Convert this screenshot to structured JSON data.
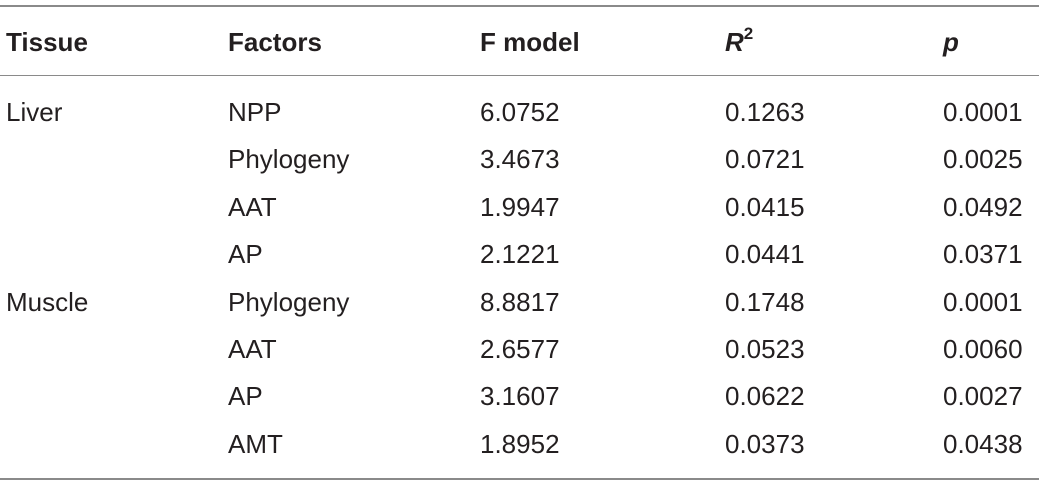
{
  "table": {
    "header": [
      "Tissue",
      "Factors",
      "F model",
      {
        "text": "R",
        "sup": "2"
      },
      "p"
    ],
    "groups": [
      {
        "tissue": "Liver",
        "rows": [
          [
            "NPP",
            "6.0752",
            "0.1263",
            "0.0001"
          ],
          [
            "Phylogeny",
            "3.4673",
            "0.0721",
            "0.0025"
          ],
          [
            "AAT",
            "1.9947",
            "0.0415",
            "0.0492"
          ],
          [
            "AP",
            "2.1221",
            "0.0441",
            "0.0371"
          ]
        ]
      },
      {
        "tissue": "Muscle",
        "rows": [
          [
            "Phylogeny",
            "8.8817",
            "0.1748",
            "0.0001"
          ],
          [
            "AAT",
            "2.6577",
            "0.0523",
            "0.0060"
          ],
          [
            "AP",
            "3.1607",
            "0.0622",
            "0.0027"
          ],
          [
            "AMT",
            "1.8952",
            "0.0373",
            "0.0438"
          ]
        ]
      }
    ]
  }
}
